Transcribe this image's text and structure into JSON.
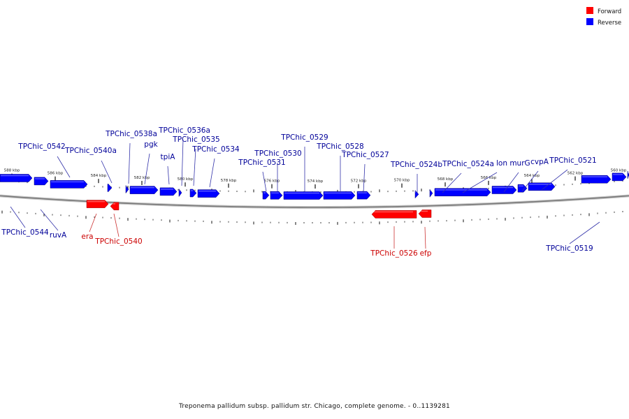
{
  "caption": "Treponema pallidum subsp. pallidum str. Chicago, complete genome. - 0..1139281",
  "legend": [
    {
      "label": "Forward",
      "color": "#ff0000"
    },
    {
      "label": "Reverse",
      "color": "#0000ff"
    }
  ],
  "colors": {
    "forward": "#ff0000",
    "reverse": "#0000ff",
    "backbone": "#777777",
    "label_forward": "#cc0000",
    "label_reverse": "#000099"
  },
  "chart_data": {
    "type": "genome-map",
    "ticks": [
      "588 kbp",
      "586 kbp",
      "584 kbp",
      "582 kbp",
      "580 kbp",
      "578 kbp",
      "576 kbp",
      "574 kbp",
      "572 kbp",
      "570 kbp",
      "568 kbp",
      "566 kbp",
      "564 kbp",
      "562 kbp",
      "560 kbp"
    ],
    "labels": [
      {
        "name": "TPChic_0542",
        "strand": "reverse"
      },
      {
        "name": "TPChic_0540a",
        "strand": "reverse"
      },
      {
        "name": "TPChic_0538a",
        "strand": "reverse"
      },
      {
        "name": "pgk",
        "strand": "reverse"
      },
      {
        "name": "TPChic_0536a",
        "strand": "reverse"
      },
      {
        "name": "tpiA",
        "strand": "reverse"
      },
      {
        "name": "TPChic_0535",
        "strand": "reverse"
      },
      {
        "name": "TPChic_0534",
        "strand": "reverse"
      },
      {
        "name": "TPChic_0529",
        "strand": "reverse"
      },
      {
        "name": "TPChic_0530",
        "strand": "reverse"
      },
      {
        "name": "TPChic_0531",
        "strand": "reverse"
      },
      {
        "name": "TPChic_0528",
        "strand": "reverse"
      },
      {
        "name": "TPChic_0527",
        "strand": "reverse"
      },
      {
        "name": "TPChic_0524b",
        "strand": "reverse"
      },
      {
        "name": "TPChic_0524a",
        "strand": "reverse"
      },
      {
        "name": "lon",
        "strand": "reverse"
      },
      {
        "name": "murG",
        "strand": "reverse"
      },
      {
        "name": "cvpA",
        "strand": "reverse"
      },
      {
        "name": "TPChic_0521",
        "strand": "reverse"
      },
      {
        "name": "TPChic_0544",
        "strand": "reverse"
      },
      {
        "name": "ruvA",
        "strand": "reverse"
      },
      {
        "name": "era",
        "strand": "forward"
      },
      {
        "name": "TPChic_0540",
        "strand": "forward"
      },
      {
        "name": "TPChic_0526",
        "strand": "forward"
      },
      {
        "name": "efp",
        "strand": "forward"
      },
      {
        "name": "TPChic_0519",
        "strand": "reverse"
      }
    ]
  }
}
